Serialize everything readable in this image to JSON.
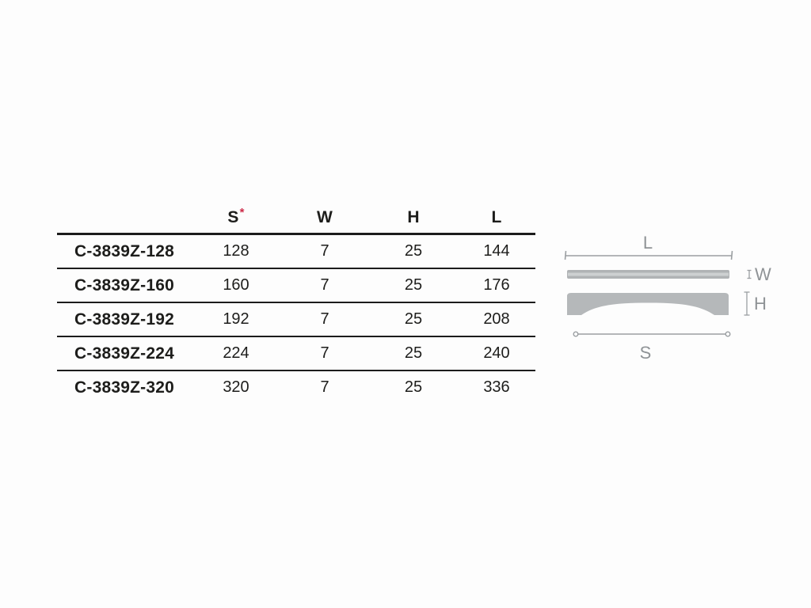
{
  "table": {
    "headers": {
      "model": "",
      "s": "S",
      "s_note": "*",
      "w": "W",
      "h": "H",
      "l": "L"
    },
    "rows": [
      {
        "model": "C-3839Z-128",
        "s": "128",
        "w": "7",
        "h": "25",
        "l": "144"
      },
      {
        "model": "C-3839Z-160",
        "s": "160",
        "w": "7",
        "h": "25",
        "l": "176"
      },
      {
        "model": "C-3839Z-192",
        "s": "192",
        "w": "7",
        "h": "25",
        "l": "208"
      },
      {
        "model": "C-3839Z-224",
        "s": "224",
        "w": "7",
        "h": "25",
        "l": "240"
      },
      {
        "model": "C-3839Z-320",
        "s": "320",
        "w": "7",
        "h": "25",
        "l": "336"
      }
    ]
  },
  "diagram": {
    "labels": {
      "l": "L",
      "w": "W",
      "h": "H",
      "s": "S"
    },
    "colors": {
      "shape_fill": "#b5b8ba",
      "shape_highlight": "#cdd0d1",
      "dim_line": "#9b9fa2",
      "label": "#8f9396"
    }
  },
  "colors": {
    "background": "#fdfdfd",
    "text": "#1d1d1b",
    "rule": "#1c1c1c",
    "asterisk": "#cd2b49"
  }
}
